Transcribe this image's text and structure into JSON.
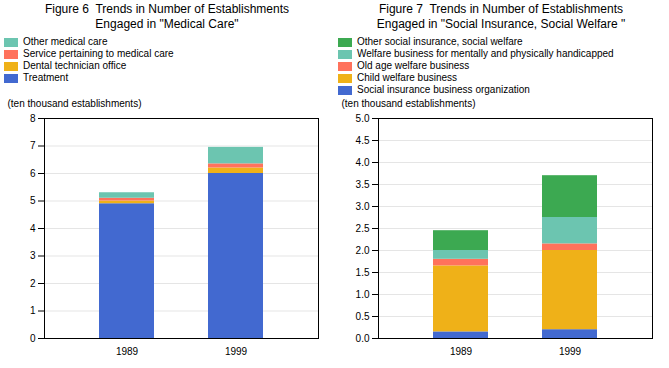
{
  "chart_data": [
    {
      "type": "bar",
      "stacked": true,
      "title": "Figure 6  Trends in Number of Establishments",
      "subtitle": "Engaged in \"Medical Care\"",
      "ylabel": "(ten thousand establishments)",
      "categories": [
        "1989",
        "1999"
      ],
      "series": [
        {
          "name": "Treatment",
          "values": [
            4.9,
            6.0
          ]
        },
        {
          "name": "Dental technician office",
          "values": [
            0.1,
            0.2
          ]
        },
        {
          "name": "Service pertaining to medical care",
          "values": [
            0.1,
            0.15
          ]
        },
        {
          "name": "Other medical care",
          "values": [
            0.2,
            0.6
          ]
        }
      ],
      "ylim": [
        0,
        8
      ],
      "yticks": [
        0,
        1,
        2,
        3,
        4,
        5,
        6,
        7,
        8
      ],
      "grid": true,
      "legend": "upper left"
    },
    {
      "type": "bar",
      "stacked": true,
      "title": "Figure 7  Trends in Number of Establishments",
      "subtitle": "Engaged in \"Social Insurance, Social Welfare \"",
      "ylabel": "(ten thousand establishments)",
      "categories": [
        "1989",
        "1999"
      ],
      "series": [
        {
          "name": "Social insurance business organization",
          "values": [
            0.15,
            0.2
          ]
        },
        {
          "name": "Child welfare business",
          "values": [
            1.5,
            1.8
          ]
        },
        {
          "name": "Old age welfare business",
          "values": [
            0.15,
            0.15
          ]
        },
        {
          "name": "Welfare business for mentally and physically handicapped",
          "values": [
            0.2,
            0.6
          ]
        },
        {
          "name": "Other social insurance, social welfare",
          "values": [
            0.45,
            0.95
          ]
        }
      ],
      "ylim": [
        0,
        5
      ],
      "yticks": [
        {
          "value": 0,
          "label": "0.0"
        },
        0.5,
        {
          "value": 1,
          "label": "1.0"
        },
        1.5,
        {
          "value": 2,
          "label": "2.0"
        },
        2.5,
        {
          "value": 3,
          "label": "3.0"
        },
        3.5,
        {
          "value": 4,
          "label": "4.0"
        },
        4.5,
        {
          "value": 5,
          "label": "5.0"
        }
      ],
      "grid": true,
      "legend": "upper left"
    }
  ]
}
